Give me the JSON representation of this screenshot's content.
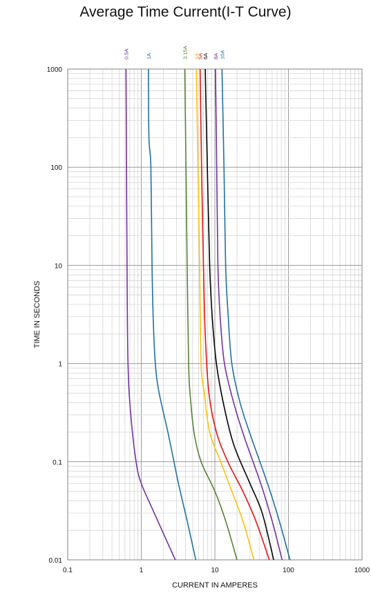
{
  "chart_data": {
    "type": "line",
    "title": "Average Time Current(I-T Curve)",
    "xlabel": "CURRENT  IN AMPERES",
    "ylabel": "TIME  IN SECONDS",
    "xscale": "log",
    "yscale": "log",
    "xlim": [
      0.1,
      1000
    ],
    "ylim": [
      0.01,
      1000
    ],
    "grid": true,
    "x_ticks": [
      {
        "value": 0.1,
        "label": "0.1"
      },
      {
        "value": 1,
        "label": "1"
      },
      {
        "value": 10,
        "label": "10"
      },
      {
        "value": 100,
        "label": "100"
      },
      {
        "value": 1000,
        "label": "1000"
      }
    ],
    "y_ticks": [
      {
        "value": 0.01,
        "label": "0.01"
      },
      {
        "value": 0.1,
        "label": "0.1"
      },
      {
        "value": 1,
        "label": "1"
      },
      {
        "value": 10,
        "label": "10"
      },
      {
        "value": 100,
        "label": "100"
      },
      {
        "value": 1000,
        "label": "1000"
      }
    ],
    "series": [
      {
        "name": "0.5A",
        "color": "#7030a0",
        "points": [
          [
            0.62,
            1000
          ],
          [
            0.63,
            100
          ],
          [
            0.64,
            10
          ],
          [
            0.66,
            1
          ],
          [
            0.72,
            0.3
          ],
          [
            0.85,
            0.1
          ],
          [
            1.0,
            0.06
          ],
          [
            1.5,
            0.03
          ],
          [
            2.9,
            0.01
          ]
        ]
      },
      {
        "name": "1A",
        "color": "#1f6fa0",
        "points": [
          [
            1.25,
            1000
          ],
          [
            1.27,
            200
          ],
          [
            1.35,
            100
          ],
          [
            1.4,
            10
          ],
          [
            1.45,
            3
          ],
          [
            1.55,
            1
          ],
          [
            1.75,
            0.5
          ],
          [
            2.3,
            0.2
          ],
          [
            3.2,
            0.06
          ],
          [
            4.2,
            0.025
          ],
          [
            5.5,
            0.01
          ]
        ]
      },
      {
        "name": "3.15A",
        "color": "#548235",
        "points": [
          [
            3.9,
            1000
          ],
          [
            4.05,
            100
          ],
          [
            4.2,
            10
          ],
          [
            4.4,
            1
          ],
          [
            4.6,
            0.5
          ],
          [
            5.2,
            0.2
          ],
          [
            6.5,
            0.1
          ],
          [
            10,
            0.05
          ],
          [
            14,
            0.025
          ],
          [
            20,
            0.01
          ]
        ]
      },
      {
        "name": "4A",
        "color": "#ffc000",
        "points": [
          [
            5.6,
            1000
          ],
          [
            5.9,
            100
          ],
          [
            6.2,
            10
          ],
          [
            6.5,
            1
          ],
          [
            7.2,
            0.5
          ],
          [
            8.5,
            0.2
          ],
          [
            12,
            0.1
          ],
          [
            17,
            0.05
          ],
          [
            24,
            0.025
          ],
          [
            34,
            0.01
          ]
        ]
      },
      {
        "name": "5A",
        "color": "#e81010",
        "points": [
          [
            6.3,
            1000
          ],
          [
            6.6,
            100
          ],
          [
            7.0,
            10
          ],
          [
            7.4,
            2
          ],
          [
            8.3,
            0.5
          ],
          [
            10.5,
            0.2
          ],
          [
            15,
            0.1
          ],
          [
            24,
            0.05
          ],
          [
            36,
            0.025
          ],
          [
            55,
            0.01
          ]
        ]
      },
      {
        "name": "6A",
        "color": "#000000",
        "points": [
          [
            7.4,
            1000
          ],
          [
            7.9,
            100
          ],
          [
            8.5,
            10
          ],
          [
            9.2,
            3
          ],
          [
            10.5,
            1
          ],
          [
            13,
            0.4
          ],
          [
            18,
            0.15
          ],
          [
            30,
            0.06
          ],
          [
            44,
            0.03
          ],
          [
            63,
            0.01
          ]
        ]
      },
      {
        "name": "8A",
        "color": "#7030a0",
        "points": [
          [
            10.2,
            1000
          ],
          [
            10.6,
            100
          ],
          [
            11,
            10
          ],
          [
            11.8,
            3
          ],
          [
            13.5,
            1
          ],
          [
            18,
            0.4
          ],
          [
            25,
            0.18
          ],
          [
            42,
            0.06
          ],
          [
            60,
            0.025
          ],
          [
            82,
            0.01
          ]
        ]
      },
      {
        "name": "10A",
        "color": "#1f6fa0",
        "points": [
          [
            12.5,
            1000
          ],
          [
            13.3,
            100
          ],
          [
            14,
            10
          ],
          [
            15.2,
            3
          ],
          [
            17,
            1
          ],
          [
            22,
            0.4
          ],
          [
            31,
            0.18
          ],
          [
            52,
            0.06
          ],
          [
            75,
            0.025
          ],
          [
            105,
            0.01
          ]
        ]
      }
    ]
  }
}
